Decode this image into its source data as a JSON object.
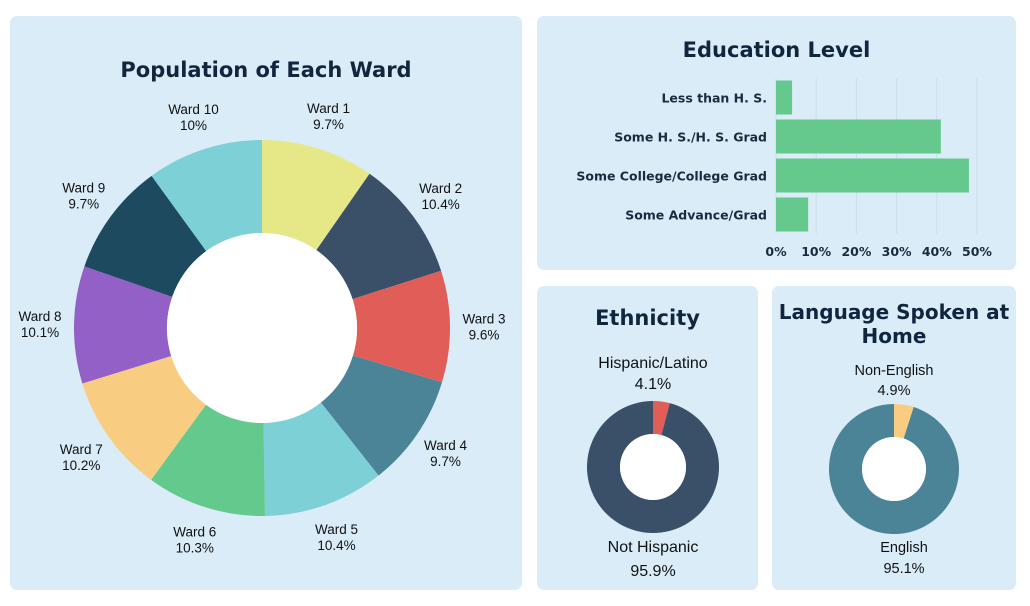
{
  "colors": {
    "panel_bg": "#d9ecf8",
    "hole": "#ffffff",
    "bar": "#65c98e",
    "grid": "#c9dfee"
  },
  "chart_data": [
    {
      "type": "pie",
      "style": "donut",
      "title": "Population of Each Ward",
      "slices": [
        {
          "label": "Ward 1",
          "value": 9.7,
          "display": "9.7%",
          "color": "#e6e887"
        },
        {
          "label": "Ward 2",
          "value": 10.4,
          "display": "10.4%",
          "color": "#3a5068"
        },
        {
          "label": "Ward 3",
          "value": 9.6,
          "display": "9.6%",
          "color": "#e05e57"
        },
        {
          "label": "Ward 4",
          "value": 9.7,
          "display": "9.7%",
          "color": "#4a8496"
        },
        {
          "label": "Ward 5",
          "value": 10.4,
          "display": "10.4%",
          "color": "#7dd0d6"
        },
        {
          "label": "Ward 6",
          "value": 10.3,
          "display": "10.3%",
          "color": "#64c98c"
        },
        {
          "label": "Ward 7",
          "value": 10.2,
          "display": "10.2%",
          "color": "#f8cd82"
        },
        {
          "label": "Ward 8",
          "value": 10.1,
          "display": "10.1%",
          "color": "#9360c7"
        },
        {
          "label": "Ward 9",
          "value": 9.7,
          "display": "9.7%",
          "color": "#1d4a5e"
        },
        {
          "label": "Ward 10",
          "value": 10,
          "display": "10%",
          "color": "#7dd0d6"
        }
      ]
    },
    {
      "type": "bar",
      "orientation": "horizontal",
      "title": "Education Level",
      "categories": [
        "Less than H. S.",
        "Some H. S./H. S. Grad",
        "Some College/College Grad",
        "Some Advance/Grad"
      ],
      "values": [
        4,
        41,
        48,
        8
      ],
      "xlim": [
        0,
        50
      ],
      "xticks": [
        "0%",
        "10%",
        "20%",
        "30%",
        "40%",
        "50%"
      ],
      "grid": true
    },
    {
      "type": "pie",
      "style": "donut",
      "title": "Ethnicity",
      "slices": [
        {
          "label": "Hispanic/Latino",
          "value": 4.1,
          "display": "4.1%",
          "color": "#e05e57"
        },
        {
          "label": "Not Hispanic",
          "value": 95.9,
          "display": "95.9%",
          "color": "#3a5068"
        }
      ]
    },
    {
      "type": "pie",
      "style": "donut",
      "title": "Language Spoken at Home",
      "slices": [
        {
          "label": "Non-English",
          "value": 4.9,
          "display": "4.9%",
          "color": "#f8cd82"
        },
        {
          "label": "English",
          "value": 95.1,
          "display": "95.1%",
          "color": "#4a8496"
        }
      ]
    }
  ]
}
